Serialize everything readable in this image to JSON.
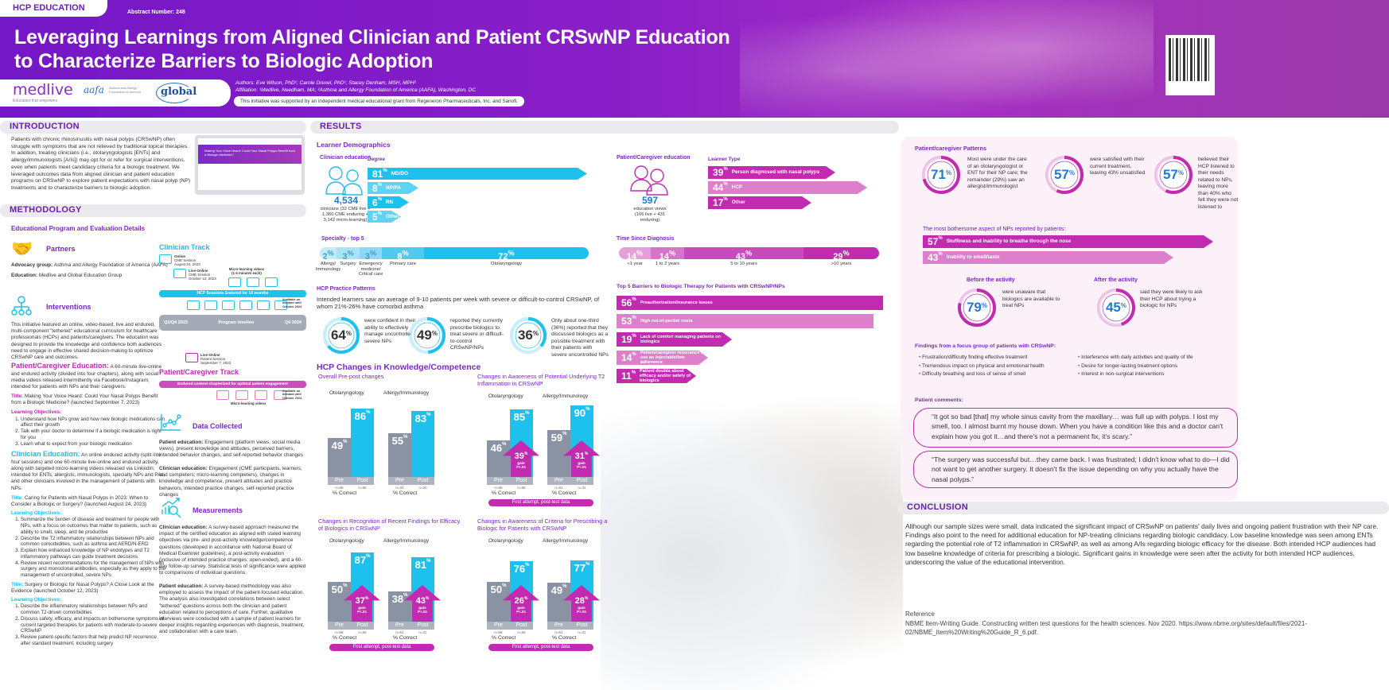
{
  "header": {
    "badge": "HCP EDUCATION",
    "abstract": "Abstract Number: 248",
    "title_line1": "Leveraging Learnings from Aligned Clinician and Patient CRSwNP Education",
    "title_line2": "to Characterize Barriers to Biologic Adoption",
    "authors": "Authors: Eve Wilson, PhD¹; Carole Drexel, PhD¹; Stacey Denham, MSH, MPH²",
    "affiliation": "Affiliation: ¹Medlive, Needham, MA; ²Asthma and Allergy Foundation of America (AAFA), Washington, DC",
    "grant": "This initiative was supported by an independent medical educational grant from Regeneron Pharmaceuticals, Inc. and Sanofi.",
    "logos": {
      "medlive": "medlive",
      "medlive_tag": "Education that empowers",
      "aafa": "aafa",
      "aafa_name": "Asthma and Allergy Foundation of America",
      "global": "global"
    }
  },
  "introduction": {
    "heading": "INTRODUCTION",
    "text": "Patients with chronic rhinosinusitis with nasal polyps (CRSwNP) often struggle with symptoms that are not relieved by traditional topical therapies. In addition, treating clinicians (i.e., otolaryngologists [ENTs] and allergy/immunologists [A/Is]) may opt for or refer for surgical interventions, even when patients meet candidacy criteria for a biologic treatment. We leveraged outcomes data from aligned clinician and patient education programs on CRSwNP to explore patient expectations with nasal polyp (NP) treatments and to characterize barriers to biologic adoption.",
    "laptop_title": "Making Your Voice Heard: Could Your Nasal Polyps Benefit from a Biologic Medicine?"
  },
  "methodology": {
    "heading": "METHODOLOGY",
    "subheading": "Educational Program and Evaluation Details",
    "partners": {
      "label": "Partners",
      "advocacy_key": "Advocacy group:",
      "advocacy": "Asthma and Allergy Foundation of America (AAFA)",
      "education_key": "Education:",
      "education": "Medlive and Global Education Group"
    },
    "interventions": {
      "label": "Interventions",
      "text": "This initiative featured an online, video-based, live and endured, multi-component \"tethered\" educational curriculum for healthcare professionals (HCPs) and patients/caregivers. The education was designed to provide the knowledge and confidence both audiences need to engage in effective shared decision-making to optimize CRSwNP care and outcomes."
    },
    "patient_ed": {
      "label": "Patient/Caregiver Education:",
      "text": "A 60-minute live-online and endured activity (divided into four chapters), along with social media videos released intermittently via Facebook/Instagram; intended for patients with NPs and their caregivers.",
      "title_key": "Title:",
      "title": "Making Your Voice Heard: Could Your Nasal Polyps Benefit from a Biologic Medicine? (launched September 7, 2023)",
      "lo_label": "Learning Objectives:",
      "objectives": [
        "Understand how NPs grow and how new biologic medications can affect their growth",
        "Talk with your doctor to determine if a biologic medication is right for you",
        "Learn what to expect from your biologic medication"
      ]
    },
    "clinician_ed": {
      "label": "Clinician Education:",
      "text": "An online endured activity (split into four sessions) and one 60-minute live-online and endured activity, along with targeted micro-learning videos released via LinkedIn; intended for ENTs, allergists, immunologists, specialty NPs and PAs, and other clinicians involved in the management of patients with NPs.",
      "title_key": "Title:",
      "title1": "Caring for Patients with Nasal Polyps in 2023: When to Consider a Biologic or Surgery? (launched August 24, 2023)",
      "lo_label": "Learning Objectives:",
      "objectives1": [
        "Summarize the burden of disease and treatment for people with NPs, with a focus on outcomes that matter to patients, such as ability to smell, sleep, and be productive",
        "Describe the T2 inflammatory relationships between NPs and common comorbidities, such as asthma and AERD/N-ERD",
        "Explain how enhanced knowledge of NP endotypes and T2 inflammatory pathways can guide treatment decisions",
        "Review recent recommendations for the management of NPs with surgery and monoclonal antibodies, especially as they apply to the management of uncontrolled, severe NPs"
      ],
      "title2": "Surgery or Biologic for Nasal Polyps? A Close Look at the Evidence (launched October 12, 2023)",
      "objectives2": [
        "Describe the inflammatory relationships between NPs and common T2-driven comorbidities",
        "Discuss safety, efficacy, and impacts on bothersome symptoms of current targeted therapies for patients with moderate-to-severe CRSwNP",
        "Review patient-specific factors that help predict NP recurrence after standard treatment, including surgery"
      ]
    },
    "timeline": {
      "clinician_track": "Clinician Track",
      "session1": [
        "Online",
        "CME Session",
        "August 24, 2023"
      ],
      "session2": [
        "Live-Online",
        "CME Session",
        "October 12, 2023"
      ],
      "micro": "Micro-learning videos (1-4 minutes each)",
      "endured": "HCP Sessions Endured for 14 months",
      "available": "Available on demand until October 2024",
      "start": "Q3/Q4 2023",
      "label": "Program timeline",
      "end": "Q4 2024",
      "patient_session": [
        "Live-Online",
        "Patient Session",
        "September 7, 2023"
      ],
      "patient_track": "Patient/Caregiver Track",
      "patient_endured": "Endured content chapterized for optimal patient engagement",
      "patient_micro": "Micro-learning videos",
      "patient_available": "Available on demand until October 2024"
    },
    "data_collected": {
      "label": "Data Collected",
      "patient_key": "Patient education:",
      "patient": "Engagement (platform views, social media views), present knowledge and attitudes, perceived barriers, intended behavior changes, and self-reported behavior changes",
      "clinician_key": "Clinician education:",
      "clinician": "Engagement (CME participants, learners, and completers; micro-learning completers), changes in knowledge and competence, present attitudes and practice behaviors, intended practice changes, self-reported practice changes"
    },
    "measurements": {
      "label": "Measurements",
      "clinician_key": "Clinician education:",
      "clinician": "A survey-based approach measured the impact of the certified education as aligned with stated learning objectives via pre- and post-activity knowledge/competence questions (developed in accordance with National Board of Medical Examiner guidelines), a post-activity evaluation (inclusive of intended practice changes; open-ended), and a 60-day follow-up survey. Statistical tests of significance were applied to comparisons of individual questions.",
      "patient_key": "Patient education:",
      "patient": "A survey-based methodology was also employed to assess the impact of the patient-focused education. The analysis also investigated correlations between select \"tethered\" questions across both the clinician and patient education related to perceptions of care. Further, qualitative interviews were conducted with a sample of patient learners for deeper insights regarding experiences with diagnosis, treatment, and collaboration with a care team."
    }
  },
  "results": {
    "heading": "RESULTS",
    "demographics": "Learner Demographics",
    "clinician": {
      "label": "Clinician education",
      "count": "4,534",
      "detail": "clinicians (32 CME live + 1,360 CME enduring + 3,142 micro-learning)"
    },
    "degree": {
      "label": "Degree",
      "items": [
        {
          "pct": 81,
          "label": "MD/DO"
        },
        {
          "pct": 8,
          "label": "NP/PA"
        },
        {
          "pct": 6,
          "label": "RN"
        },
        {
          "pct": 5,
          "label": "Other"
        }
      ]
    },
    "specialty": {
      "label": "Specialty - top 5",
      "items": [
        {
          "pct": 2,
          "label": "Allergy/ Immunology"
        },
        {
          "pct": 3,
          "label": "Surgery"
        },
        {
          "pct": 3,
          "label": "Emergency medicine/ Critical care"
        },
        {
          "pct": 8,
          "label": "Primary care"
        },
        {
          "pct": 72,
          "label": "Otolaryngology"
        }
      ]
    },
    "practice": {
      "label": "HCP Practice Patterns",
      "intro": "Intended learners saw an average of 9-10 patients per week with severe or difficult-to-control CRSwNP, of whom 21%-26% have comorbid asthma",
      "donuts": [
        {
          "pct": 64,
          "text": "were confident in their ability to effectively manage uncontrolled severe NPs"
        },
        {
          "pct": 49,
          "text": "reported they currently prescribe biologics to treat severe or difficult-to-control CRSwNP/NPs"
        },
        {
          "pct": 36,
          "text": "Only about one-third (36%) reported that they discussed biologics as a possible treatment with their patients with severe uncontrolled NPs"
        }
      ]
    },
    "knowledge": {
      "heading": "HCP Changes in Knowledge/Competence",
      "pre_label": "Pre",
      "post_label": "Post",
      "axis_label": "% Correct",
      "gain_label": "gain",
      "p_label": "P<.01",
      "footnote": "First attempt, post-test data",
      "charts": [
        {
          "title": "Overall Pre-post changes",
          "groups": [
            {
              "name": "Otolaryngology",
              "pre": 49,
              "post": 86,
              "n_pre": "n=68",
              "n_post": "n=55"
            },
            {
              "name": "Allergy/Immunology",
              "pre": 55,
              "post": 83,
              "n_pre": "n=33",
              "n_post": "n=30"
            }
          ],
          "footnote": false
        },
        {
          "title": "Changes in Awareness of Potential Underlying T2 Inflammation in CRSwNP",
          "groups": [
            {
              "name": "Otolaryngology",
              "pre": 46,
              "post": 85,
              "gain": 39,
              "n_pre": "n=68",
              "n_post": "n=55"
            },
            {
              "name": "Allergy/Immunology",
              "pre": 59,
              "post": 90,
              "gain": 31,
              "n_pre": "n=61",
              "n_post": "n=31"
            }
          ],
          "footnote": true
        },
        {
          "title": "Changes in Recognition of Recent Findings for Efficacy of Biologics in CRSwNP",
          "groups": [
            {
              "name": "Otolaryngology",
              "pre": 50,
              "post": 87,
              "gain": 37,
              "n_pre": "n=68",
              "n_post": "n=55"
            },
            {
              "name": "Allergy/Immunology",
              "pre": 38,
              "post": 81,
              "gain": 43,
              "n_pre": "n=61",
              "n_post": "n=31"
            }
          ],
          "footnote": true
        },
        {
          "title": "Changes in Awareness of Criteria for Prescribing a Biologic for Patients with CRSwNP",
          "groups": [
            {
              "name": "Otolaryngology",
              "pre": 50,
              "post": 76,
              "gain": 26,
              "n_pre": "n=68",
              "n_post": "n=55"
            },
            {
              "name": "Allergy/Immunology",
              "pre": 49,
              "post": 77,
              "gain": 28,
              "n_pre": "n=61",
              "n_post": "n=31"
            }
          ],
          "footnote": true
        }
      ]
    },
    "patient": {
      "label": "Patient/Caregiver education",
      "count": "597",
      "detail": "education views (166 live + 431 enduring)"
    },
    "learner_type": {
      "label": "Learner Type",
      "items": [
        {
          "pct": 39,
          "label": "Person diagnosed with nasal polyps"
        },
        {
          "pct": 44,
          "label": "HCP"
        },
        {
          "pct": 17,
          "label": "Other"
        }
      ]
    },
    "diagnosis": {
      "label": "Time Since Diagnosis",
      "items": [
        {
          "pct": 14,
          "label": "<1 year"
        },
        {
          "pct": 14,
          "label": "1 to 2 years"
        },
        {
          "pct": 43,
          "label": "5 to 10 years"
        },
        {
          "pct": 29,
          "label": ">10 years"
        }
      ]
    },
    "barriers": {
      "label": "Top 5 Barriers to Biologic Therapy for Patients with CRSwNP/NPs",
      "items": [
        {
          "pct": 56,
          "label": "Preauthorization/insurance issues"
        },
        {
          "pct": 53,
          "label": "High out-of-pocket costs"
        },
        {
          "pct": 19,
          "label": "Lack of comfort managing patients on biologics"
        },
        {
          "pct": 14,
          "label": "Patient/caregiver reluctance to use an injectable/low adherence"
        },
        {
          "pct": 11,
          "label": "Patient doubts about efficacy and/or safety of biologics"
        }
      ]
    }
  },
  "patient_patterns": {
    "label": "Patient/caregiver Patterns",
    "donuts": [
      {
        "pct": 71,
        "text": "Most were under the care of an otolaryngologist or ENT for their NP care; the remainder (29%) saw an allergist/immunologist"
      },
      {
        "pct": 57,
        "text": "were satisfied with their current treatment, leaving 43% unsatisfied"
      },
      {
        "pct": 57,
        "text": "believed their HCP listened to their needs related to NPs, leaving more than 40% who felt they were not listened to"
      }
    ],
    "bothersome": {
      "label": "The most bothersome aspect of NPs reported by patients:",
      "items": [
        {
          "pct": 57,
          "label": "Stuffiness and inability to breathe through the nose"
        },
        {
          "pct": 43,
          "label": "Inability to smell/taste"
        }
      ]
    },
    "before": {
      "label": "Before the activity",
      "pct": 79,
      "text": "were unaware that biologics are available to treat NPs"
    },
    "after": {
      "label": "After the activity",
      "pct": 45,
      "text": "said they were likely to ask their HCP about trying a biologic for NPs"
    },
    "findings": {
      "label": "Findings from a focus group of patients with CRSwNP:",
      "left": [
        "Frustration/difficulty finding effective treatment",
        "Tremendous impact on physical and emotional health",
        "Difficulty breathing and loss of sense of smell"
      ],
      "right": [
        "Interference with daily activities and quality of life",
        "Desire for longer-lasting treatment options",
        "Interest in non-surgical interventions"
      ]
    },
    "comments": {
      "label": "Patient comments:",
      "quotes": [
        "“It got so bad [that] my whole sinus cavity from the maxillary… was full up with polyps. I lost my smell, too. I almost burnt my house down. When you have a condition like this and a doctor can't explain how you got it…and there's not a permanent fix, it's scary.”",
        "“The surgery was successful but…they came back. I was frustrated; I didn't know what to do—I did not want to get another surgery. It doesn't fix the issue depending on why you actually have the nasal polyps.”"
      ]
    }
  },
  "conclusion": {
    "heading": "CONCLUSION",
    "text": "Although our sample sizes were small, data indicated the significant impact of CRSwNP on patients' daily lives and ongoing patient frustration with their NP care. Findings also point to the need for additional education for NP-treating clinicians regarding biologic candidacy. Low baseline knowledge was seen among ENTs regarding the potential role of T2 inflammation in CRSwNP, as well as among A/Is regarding biologic efficacy for the disease. Both intended HCP audiences had low baseline knowledge of criteria for prescribing a biologic. Significant gains in knowledge were seen after the activity for both intended HCP audiences, underscoring the value of the educational intervention.",
    "reference_label": "Reference",
    "reference": "NBME Item-Writing Guide. Constructing written test questions for the health sciences. Nov 2020. https://www.nbme.org/sites/default/files/2021-02/NBME_Item%20Writing%20Guide_R_6.pdf."
  },
  "colors": {
    "purple": "#6a1fb0",
    "cyan": "#1ec0ee",
    "magenta": "#c22ab0",
    "magenta_light": "#de7fcb",
    "blue_number": "#1e7ad6",
    "gray_bar": "#8a93a3"
  }
}
